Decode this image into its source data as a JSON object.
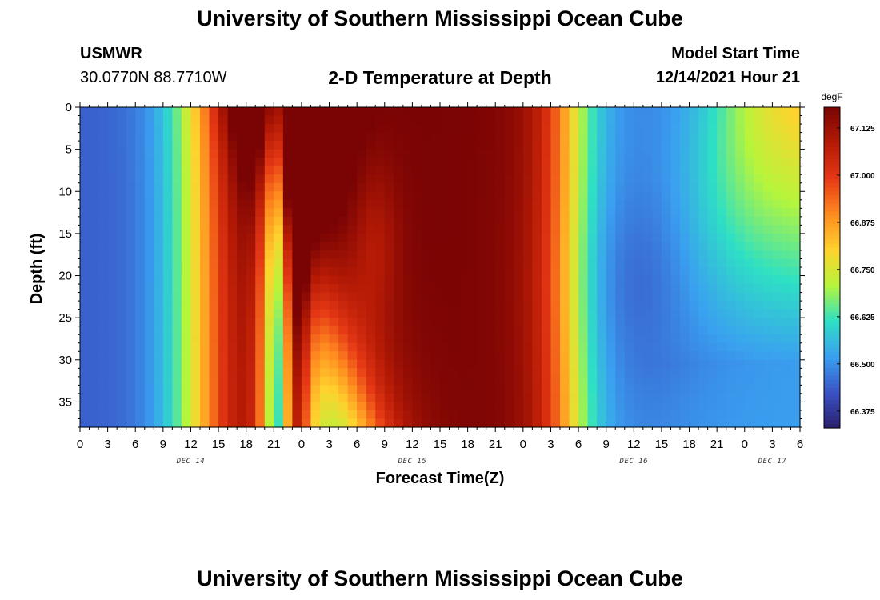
{
  "header": {
    "title": "University of Southern Mississippi Ocean Cube",
    "station": "USMWR",
    "coordinates": "30.0770N  88.7710W",
    "subtitle": "2-D Temperature at Depth",
    "model_start_label": "Model Start Time",
    "model_start_value": "12/14/2021 Hour 21"
  },
  "footer": {
    "title": "University of Southern Mississippi Ocean Cube"
  },
  "chart_data": {
    "type": "heatmap",
    "title": "2-D Temperature at Depth",
    "xlabel": "Forecast Time(Z)",
    "ylabel": "Depth (ft)",
    "x_hours_range": [
      0,
      78
    ],
    "y_range": [
      0,
      38
    ],
    "y_ticks": [
      0,
      5,
      10,
      15,
      20,
      25,
      30,
      35
    ],
    "x_tick_labels": [
      "0",
      "3",
      "6",
      "9",
      "12",
      "15",
      "18",
      "21",
      "0",
      "3",
      "6",
      "9",
      "12",
      "15",
      "18",
      "21",
      "0",
      "3",
      "6",
      "9",
      "12",
      "15",
      "18",
      "21",
      "0",
      "3",
      "6"
    ],
    "day_labels": [
      {
        "label": "DEC 14",
        "hour": 12
      },
      {
        "label": "DEC 15",
        "hour": 36
      },
      {
        "label": "DEC 16",
        "hour": 60
      },
      {
        "label": "DEC 17",
        "hour": 75
      }
    ],
    "colorbar": {
      "unit": "degF",
      "min": 66.33,
      "max": 67.18,
      "ticks": [
        66.375,
        66.5,
        66.625,
        66.75,
        66.875,
        67.0,
        67.125
      ],
      "tick_labels": [
        "66.375",
        "66.500",
        "66.625",
        "66.750",
        "66.875",
        "67.000",
        "67.125"
      ]
    },
    "colors": [
      "#2a1f6e",
      "#3a53c6",
      "#3aa0f0",
      "#2ee0c4",
      "#b6f53b",
      "#ffd22d",
      "#ff8a1f",
      "#e53815",
      "#b51a05",
      "#7a0404"
    ],
    "grid": false,
    "legend": "right colorbar"
  }
}
